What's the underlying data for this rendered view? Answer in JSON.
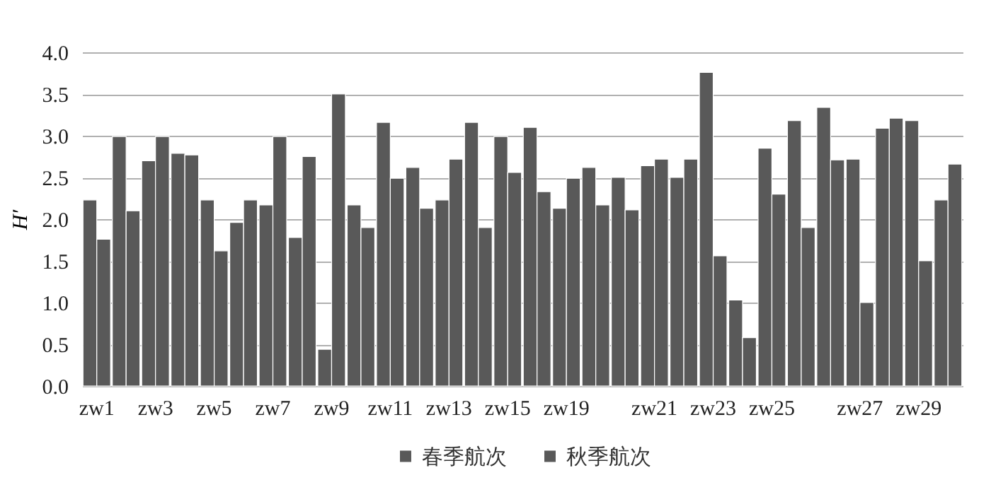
{
  "chart_data": {
    "type": "bar",
    "ylabel": "H′",
    "categories": [
      "zw1",
      null,
      "zw3",
      null,
      "zw5",
      null,
      "zw7",
      null,
      "zw9",
      null,
      "zw11",
      null,
      "zw13",
      null,
      "zw15",
      null,
      "zw19",
      null,
      null,
      "zw21",
      null,
      "zw23",
      null,
      "zw25",
      null,
      null,
      "zw27",
      null,
      "zw29",
      null
    ],
    "series": [
      {
        "name": "春季航次",
        "color": "#595959",
        "values": [
          2.23,
          2.99,
          2.7,
          2.79,
          2.23,
          1.96,
          2.17,
          1.78,
          0.44,
          2.17,
          3.16,
          2.62,
          2.23,
          3.16,
          2.99,
          3.1,
          2.13,
          2.62,
          2.5,
          2.64,
          2.5,
          3.76,
          1.03,
          2.85,
          3.18,
          3.34,
          2.72,
          3.09,
          3.18,
          2.23
        ]
      },
      {
        "name": "秋季航次",
        "color": "#595959",
        "values": [
          1.76,
          2.1,
          2.99,
          2.77,
          1.62,
          2.23,
          2.99,
          2.75,
          3.5,
          1.9,
          2.49,
          2.13,
          2.72,
          1.9,
          2.56,
          2.33,
          2.49,
          2.17,
          2.11,
          2.72,
          2.72,
          1.56,
          0.58,
          2.3,
          1.9,
          2.71,
          1.0,
          3.21,
          1.5,
          2.66
        ]
      }
    ],
    "ylim": [
      0,
      4
    ],
    "yticks": [
      {
        "value": 0,
        "label": "0.0"
      },
      0.5,
      {
        "value": 1,
        "label": "1.0"
      },
      1.5,
      {
        "value": 2,
        "label": "2.0"
      },
      2.5,
      {
        "value": 3,
        "label": "3.0"
      },
      3.5,
      {
        "value": 4,
        "label": "4.0"
      }
    ],
    "grid": "y",
    "legend": "bottom"
  }
}
